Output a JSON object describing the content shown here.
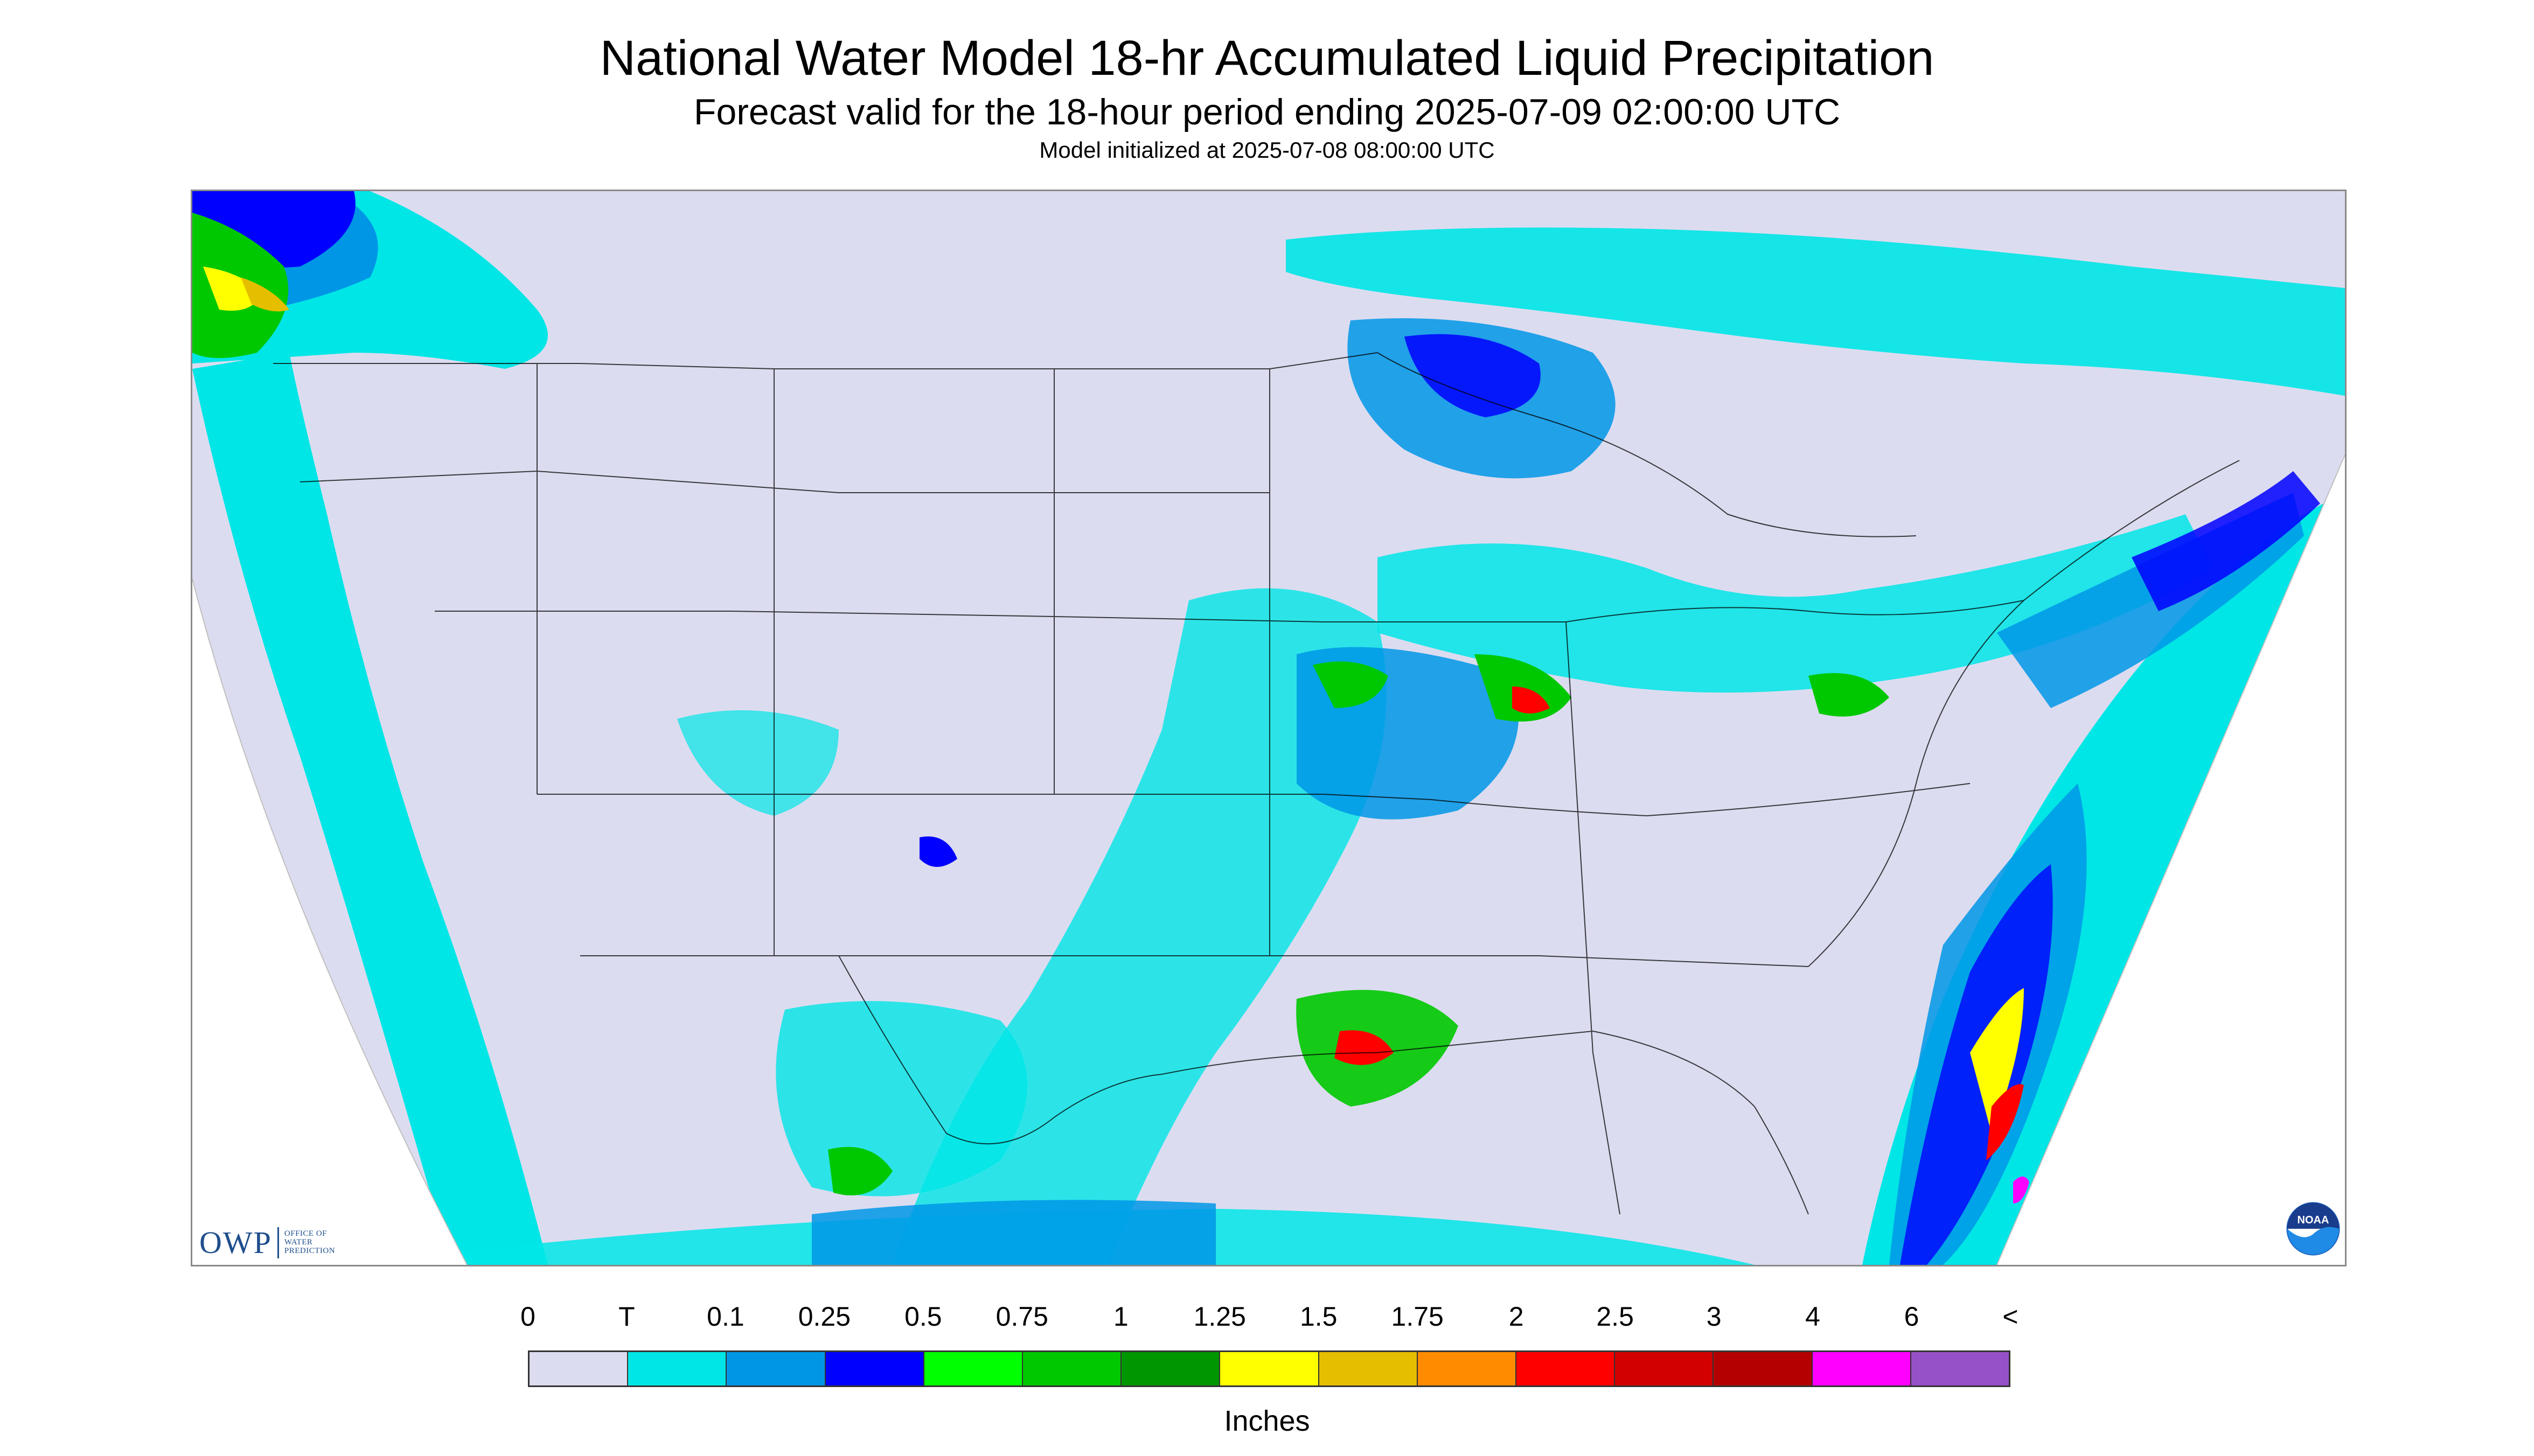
{
  "header": {
    "title": "National Water Model 18-hr Accumulated Liquid Precipitation",
    "subtitle": "Forecast valid for the 18-hour period ending 2025-07-09 02:00:00 UTC",
    "init": "Model initialized at 2025-07-08 08:00:00 UTC"
  },
  "logos": {
    "owp": {
      "text": "OWP",
      "sub": "OFFICE OF\nWATER\nPREDICTION"
    },
    "noaa": {
      "text": "NOAA"
    }
  },
  "legend": {
    "labels": [
      "0",
      "T",
      "0.1",
      "0.25",
      "0.5",
      "0.75",
      "1",
      "1.25",
      "1.5",
      "1.75",
      "2",
      "2.5",
      "3",
      "4",
      "6",
      "<"
    ],
    "colors": [
      "#dcdcf0",
      "#00e6e6",
      "#0096e6",
      "#0000ff",
      "#00ff00",
      "#00c800",
      "#009600",
      "#ffff00",
      "#e6be00",
      "#ff8c00",
      "#ff0000",
      "#d20000",
      "#b40000",
      "#ff00ff",
      "#9650c8"
    ],
    "units": "Inches"
  },
  "map": {
    "background_color": "#dcdcf0",
    "outside_domain_color": "#ffffff",
    "border_color": "#000000"
  }
}
